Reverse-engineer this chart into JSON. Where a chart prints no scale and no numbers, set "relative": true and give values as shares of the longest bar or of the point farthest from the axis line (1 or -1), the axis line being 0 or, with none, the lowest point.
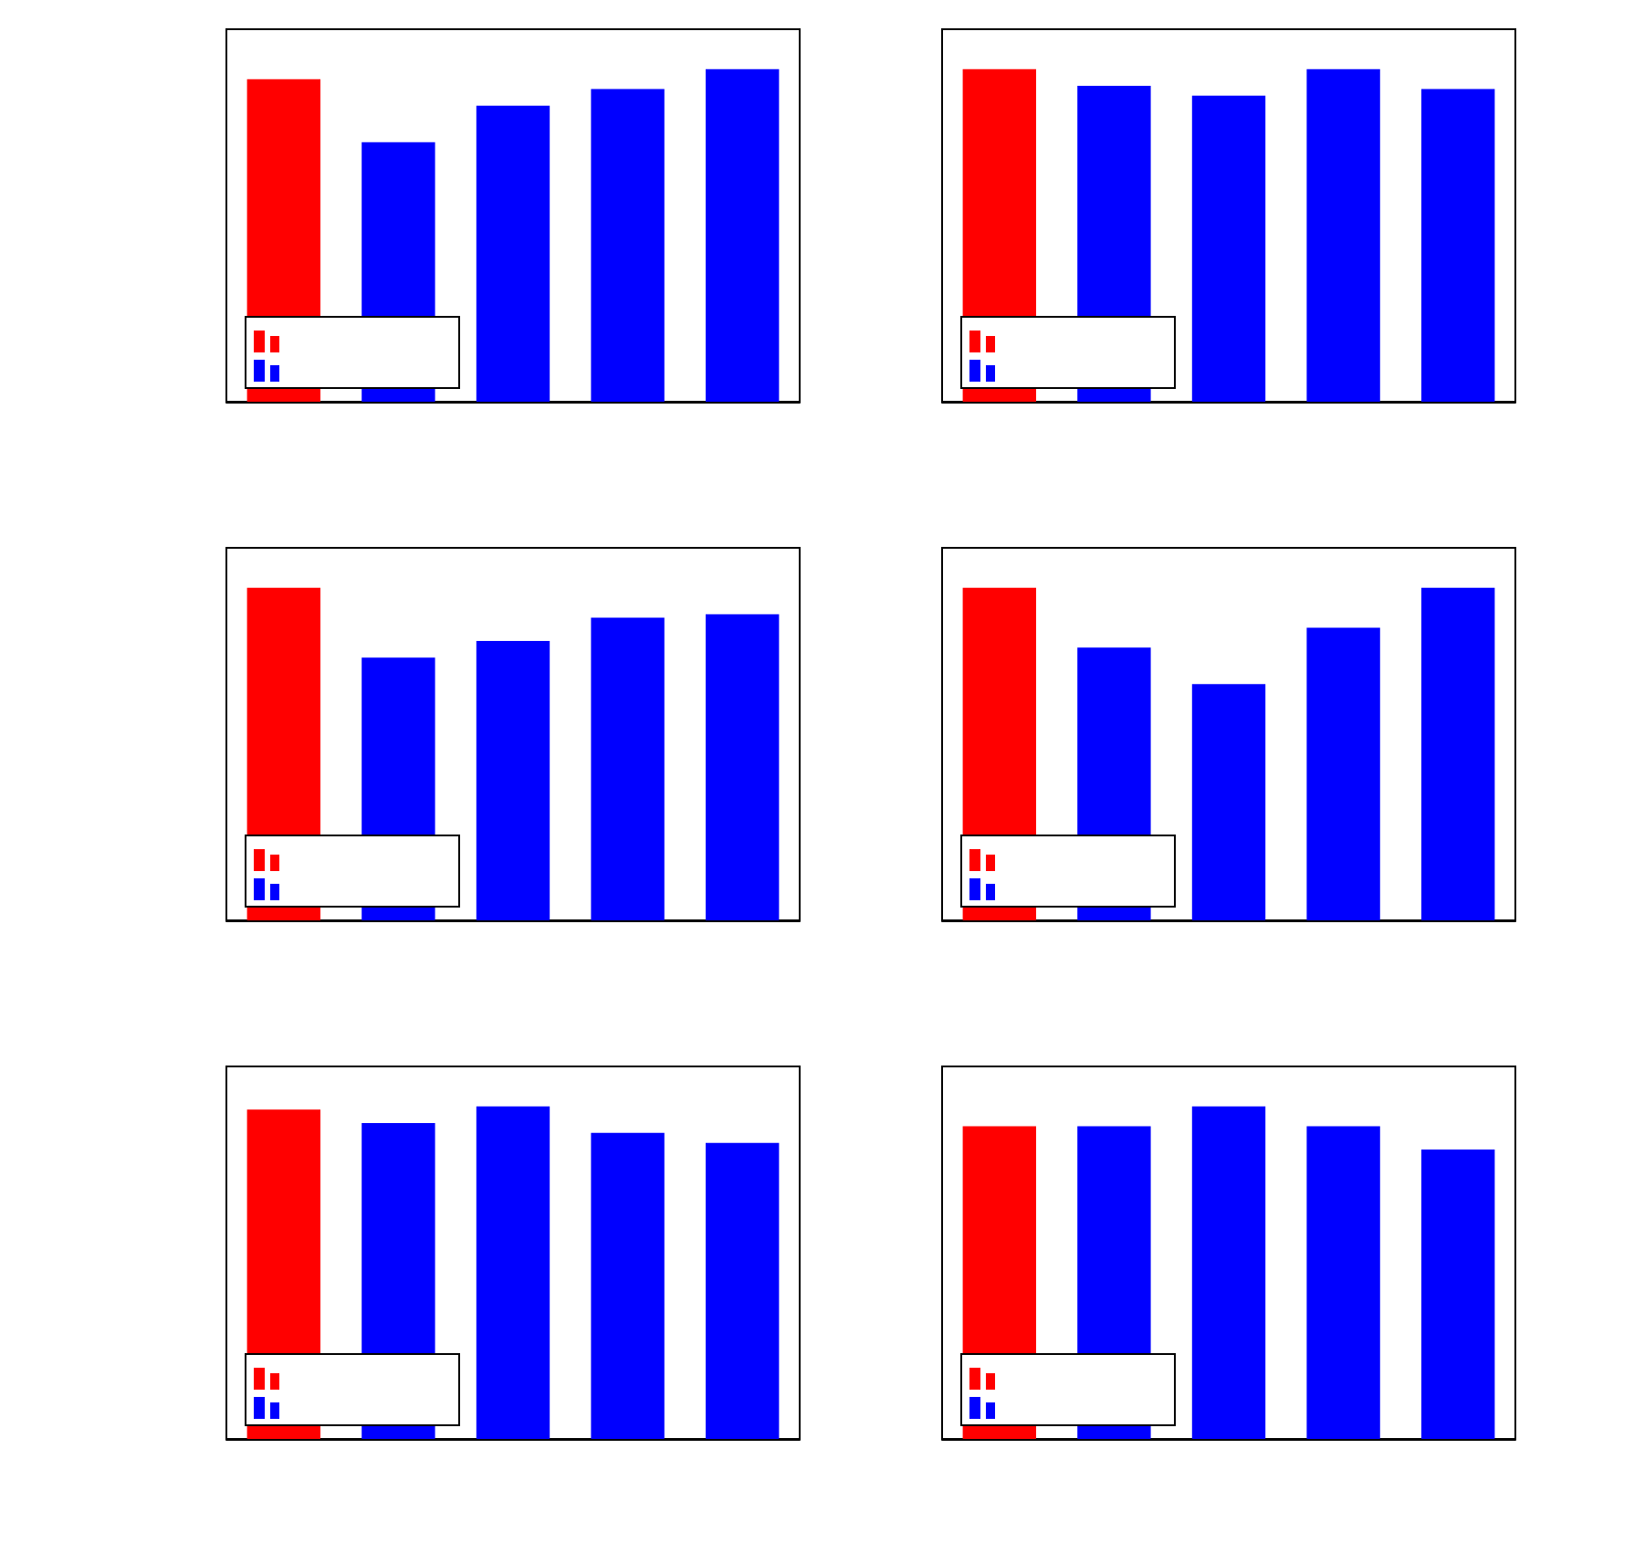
{
  "chart_data": [
    {
      "type": "bar",
      "categories": [
        null,
        null,
        null,
        null,
        null
      ],
      "relative": true,
      "values": [
        0.97,
        0.78,
        0.89,
        0.94,
        1
      ],
      "colors": [
        "#ff0000",
        "#0000ff",
        "#0000ff",
        "#0000ff",
        "#0000ff"
      ]
    },
    {
      "type": "bar",
      "categories": [
        null,
        null,
        null,
        null,
        null
      ],
      "relative": true,
      "values": [
        1,
        0.95,
        0.92,
        1,
        0.94
      ],
      "colors": [
        "#ff0000",
        "#0000ff",
        "#0000ff",
        "#0000ff",
        "#0000ff"
      ]
    },
    {
      "type": "bar",
      "categories": [
        null,
        null,
        null,
        null,
        null
      ],
      "relative": true,
      "values": [
        1,
        0.79,
        0.84,
        0.91,
        0.92
      ],
      "colors": [
        "#ff0000",
        "#0000ff",
        "#0000ff",
        "#0000ff",
        "#0000ff"
      ]
    },
    {
      "type": "bar",
      "categories": [
        null,
        null,
        null,
        null,
        null
      ],
      "relative": true,
      "values": [
        1,
        0.82,
        0.71,
        0.88,
        1
      ],
      "colors": [
        "#ff0000",
        "#0000ff",
        "#0000ff",
        "#0000ff",
        "#0000ff"
      ]
    },
    {
      "type": "bar",
      "categories": [
        null,
        null,
        null,
        null,
        null
      ],
      "relative": true,
      "values": [
        0.99,
        0.95,
        1,
        0.92,
        0.89
      ],
      "colors": [
        "#ff0000",
        "#0000ff",
        "#0000ff",
        "#0000ff",
        "#0000ff"
      ]
    },
    {
      "type": "bar",
      "categories": [
        null,
        null,
        null,
        null,
        null
      ],
      "relative": true,
      "values": [
        0.94,
        0.94,
        1,
        0.94,
        0.87
      ],
      "colors": [
        "#ff0000",
        "#0000ff",
        "#0000ff",
        "#0000ff",
        "#0000ff"
      ]
    }
  ]
}
